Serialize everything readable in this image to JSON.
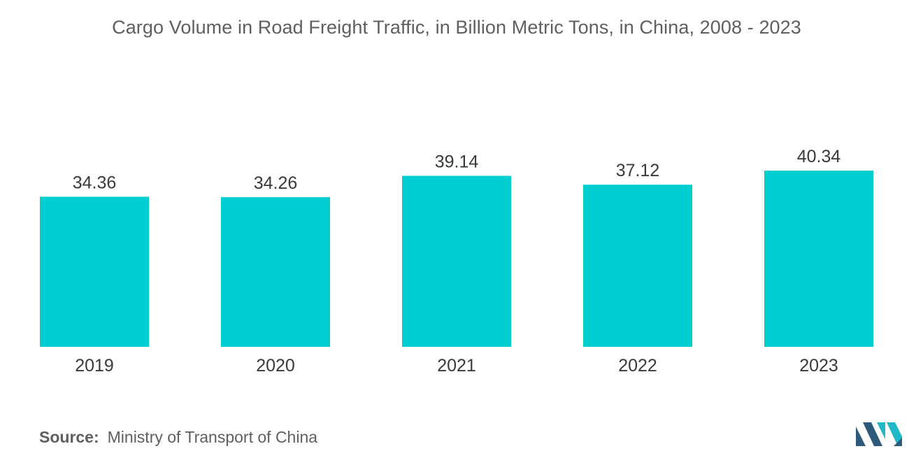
{
  "chart_data": {
    "type": "bar",
    "title": "Cargo Volume in Road Freight Traffic, in Billion Metric Tons, in China, 2008 - 2023",
    "categories": [
      "2019",
      "2020",
      "2021",
      "2022",
      "2023"
    ],
    "values": [
      34.36,
      34.26,
      39.14,
      37.12,
      40.34
    ],
    "value_labels": [
      "34.36",
      "34.26",
      "39.14",
      "37.12",
      "40.34"
    ],
    "xlabel": "",
    "ylabel": "",
    "ylim": [
      0,
      40.34
    ],
    "grid": false,
    "legend": "none",
    "bar_color": "#00ced1"
  },
  "source": {
    "prefix": "Source:",
    "text": "Ministry of Transport of China"
  },
  "logo": {
    "icon": "mordor-intelligence-logo-icon",
    "colors": [
      "#2d5a7b",
      "#1fb8c9"
    ]
  }
}
